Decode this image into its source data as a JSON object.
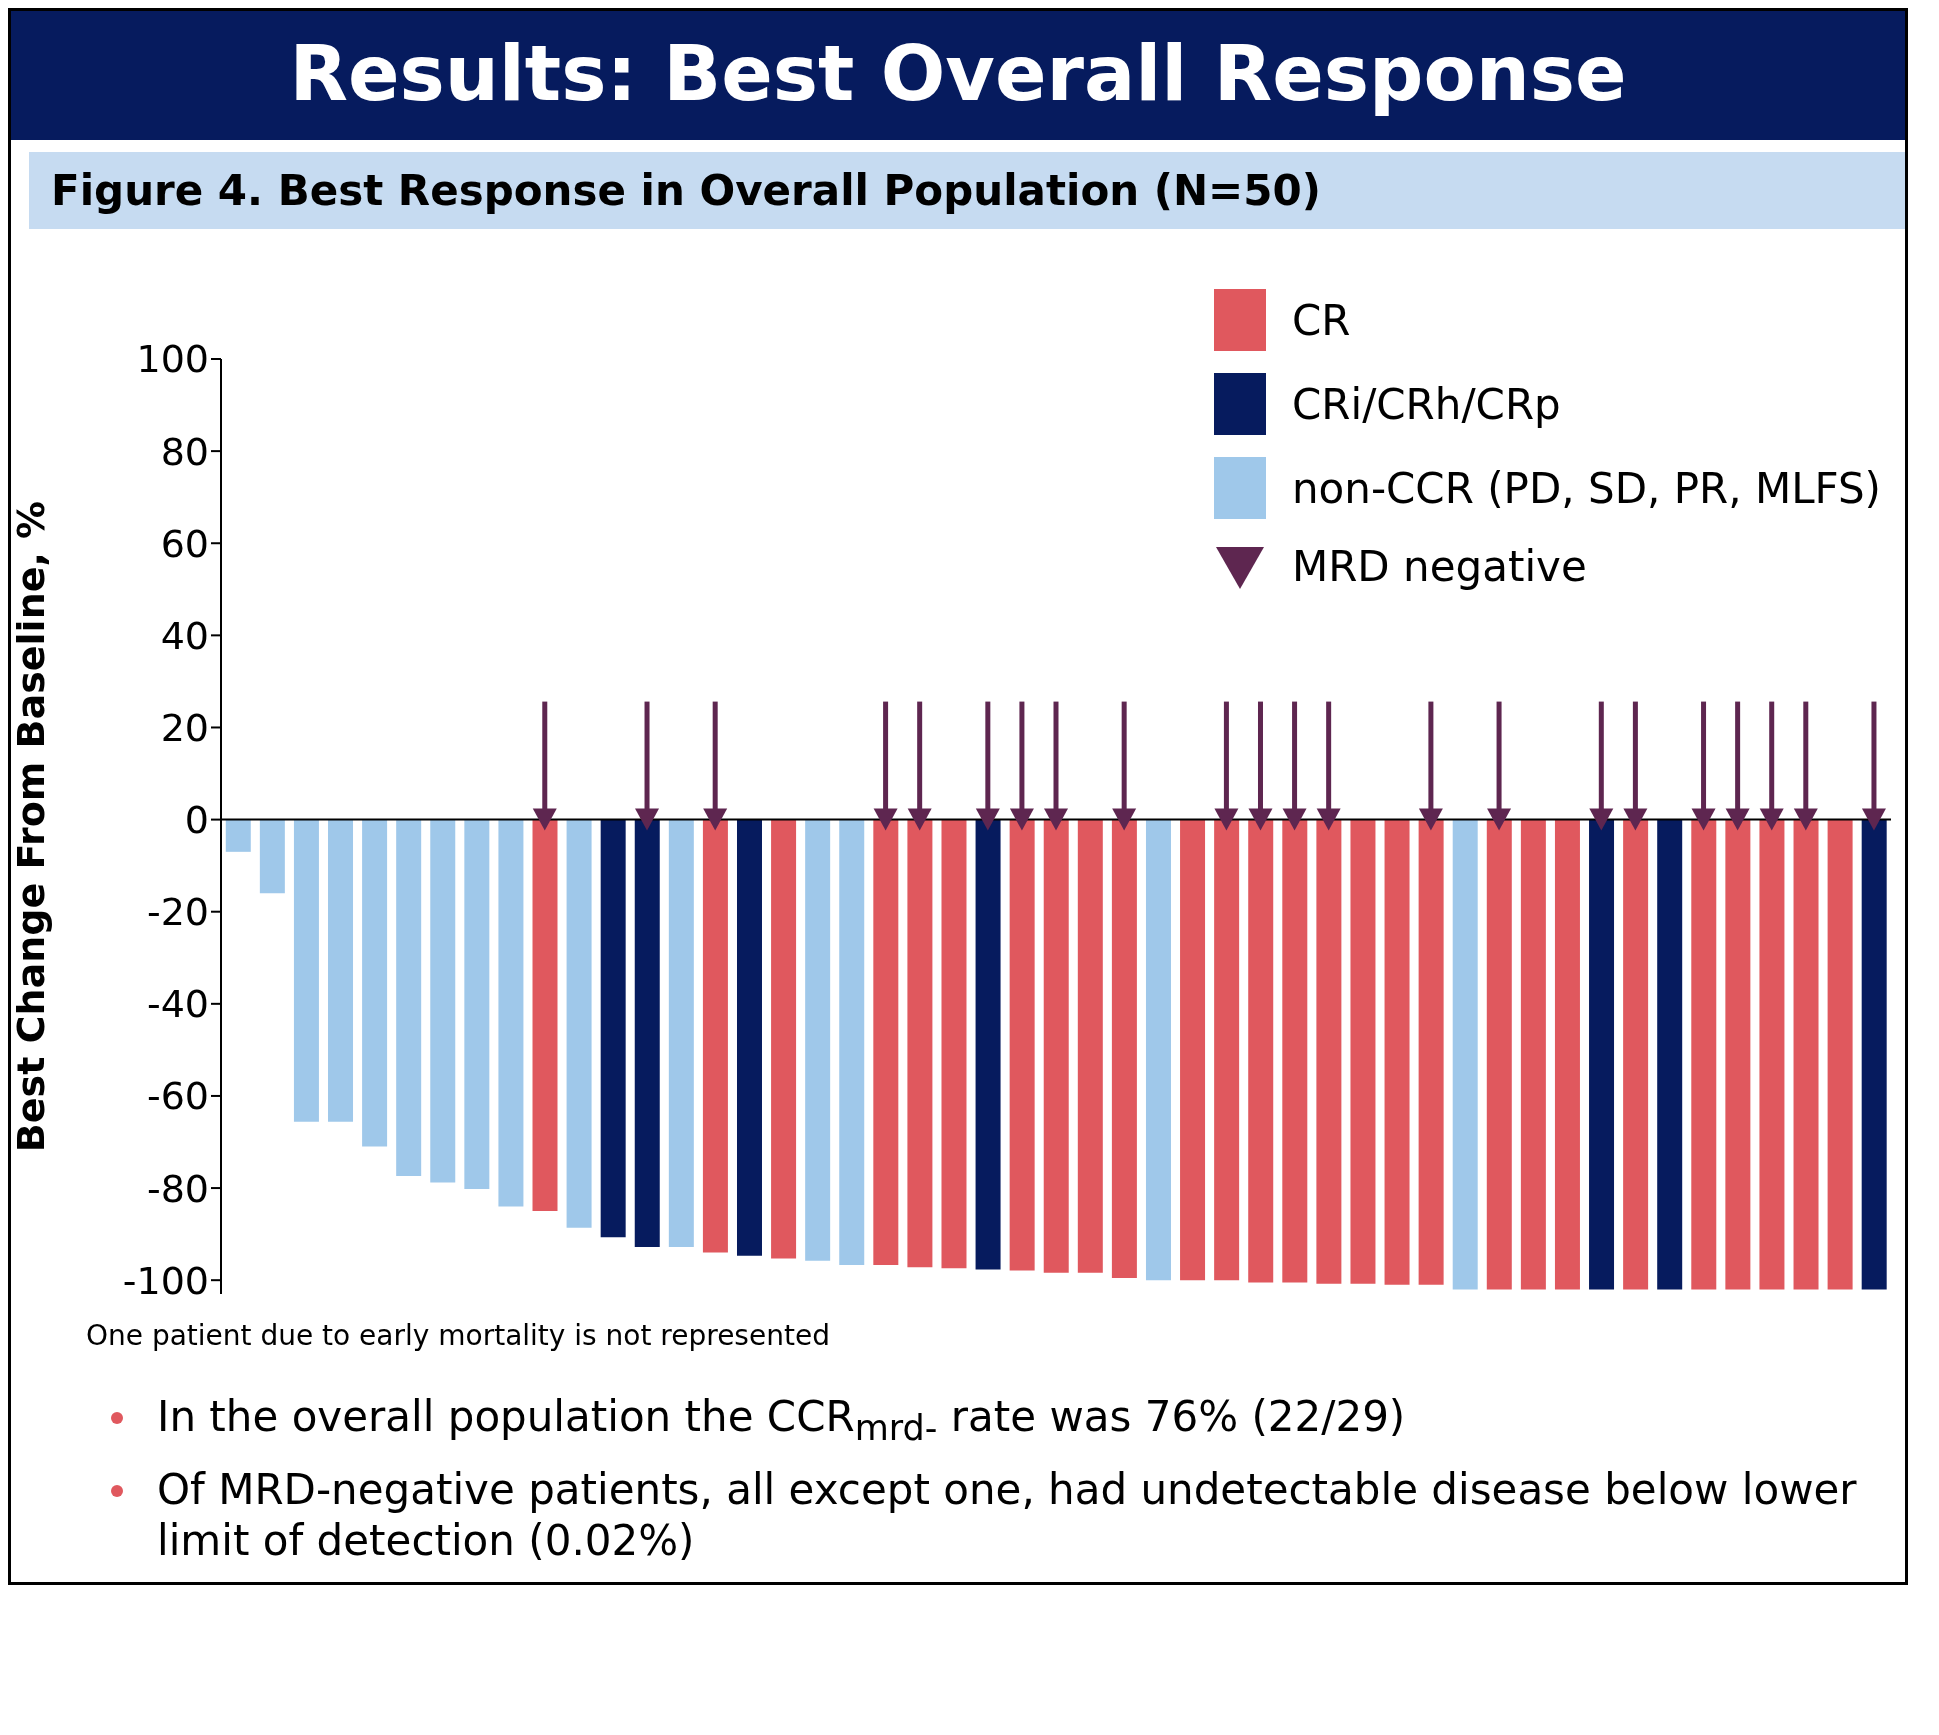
{
  "chart_data": {
    "type": "bar",
    "title": "Results: Best Overall Response",
    "subtitle": "Figure 4. Best Response in Overall Population (N=50)",
    "ylabel": "Best Change From Baseline, %",
    "categories": [
      null,
      null,
      null,
      null,
      null,
      null,
      null,
      null,
      null,
      null,
      null,
      null,
      null,
      null,
      null,
      null,
      null,
      null,
      null,
      null,
      null,
      null,
      null,
      null,
      null,
      null,
      null,
      null,
      null,
      null,
      null,
      null,
      null,
      null,
      null,
      null,
      null,
      null,
      null,
      null,
      null,
      null,
      null,
      null,
      null,
      null,
      null,
      null,
      null
    ],
    "stacked": true,
    "ref_lines": [
      {
        "axis": "y",
        "value": 0,
        "color": "#000000"
      }
    ],
    "tick_labels": "y",
    "legend": "top right",
    "grid": false,
    "ylim": [
      -103,
      100
    ],
    "yticks": [
      -100,
      -80,
      -60,
      -40,
      -20,
      0,
      20,
      40,
      60,
      80,
      100
    ],
    "series": [
      {
        "name": "CR",
        "color": "#e0585e",
        "values": [
          null,
          null,
          null,
          null,
          null,
          null,
          null,
          null,
          null,
          -85,
          null,
          null,
          null,
          null,
          -94,
          null,
          -95.3,
          null,
          null,
          -96.7,
          -97.2,
          -97.4,
          null,
          -97.9,
          -98.4,
          -98.4,
          -99.5,
          null,
          -100,
          -100,
          -100.5,
          -100.5,
          -100.8,
          -100.8,
          -101,
          -101,
          null,
          -102,
          -102,
          -102,
          null,
          -102,
          null,
          -102,
          -102,
          -102,
          -102,
          -102,
          null
        ]
      },
      {
        "name": "CRi/CRh/CRp",
        "color": "#061b5e",
        "values": [
          null,
          null,
          null,
          null,
          null,
          null,
          null,
          null,
          null,
          null,
          null,
          -90.7,
          -92.8,
          null,
          null,
          -94.7,
          null,
          null,
          null,
          null,
          null,
          null,
          -97.7,
          null,
          null,
          null,
          null,
          null,
          null,
          null,
          null,
          null,
          null,
          null,
          null,
          null,
          null,
          null,
          null,
          null,
          -102,
          null,
          -102,
          null,
          null,
          null,
          null,
          null,
          -102
        ]
      },
      {
        "name": "non-CCR (PD, SD, PR, MLFS)",
        "color": "#9fc8ea",
        "values": [
          -7,
          -16,
          -65.6,
          -65.6,
          -71,
          -77.4,
          -78.8,
          -80.2,
          -84,
          null,
          -88.6,
          null,
          null,
          -92.8,
          null,
          null,
          null,
          -95.8,
          -96.7,
          null,
          null,
          null,
          null,
          null,
          null,
          null,
          null,
          -100,
          null,
          null,
          null,
          null,
          null,
          null,
          null,
          null,
          -102,
          null,
          null,
          null,
          null,
          null,
          null,
          null,
          null,
          null,
          null,
          null,
          null
        ]
      },
      {
        "name": "MRD negative",
        "type": "scatter",
        "marker": "triangle",
        "color": "#5e2650",
        "values": [
          null,
          null,
          null,
          null,
          null,
          null,
          null,
          null,
          null,
          0,
          null,
          null,
          0,
          null,
          0,
          null,
          null,
          null,
          null,
          0,
          0,
          null,
          0,
          0,
          0,
          null,
          0,
          null,
          null,
          0,
          0,
          0,
          0,
          null,
          null,
          0,
          null,
          0,
          null,
          null,
          0,
          0,
          null,
          0,
          0,
          0,
          0,
          null,
          0
        ]
      }
    ],
    "annotations": [
      "One patient due to early mortality is not represented",
      "In the overall population the CCR$_{mrd-}$ rate was 76% (22/29)",
      "Of MRD-negative patients, all except one, had undetectable disease below lower limit of detection (0.02%)"
    ]
  }
}
